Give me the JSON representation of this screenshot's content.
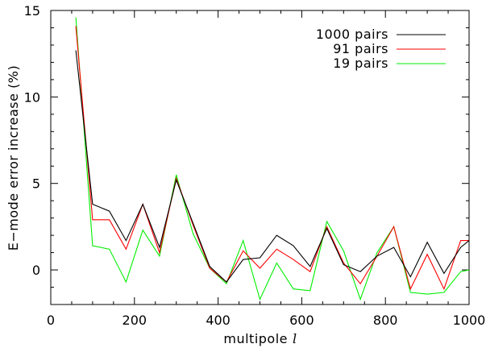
{
  "chart_data": {
    "type": "line",
    "xlabel": "multipole",
    "xlabel_symbol": "l",
    "ylabel": "E−mode error increase (%)",
    "xlim": [
      0,
      1000
    ],
    "ylim": [
      -2,
      15
    ],
    "x_ticks": [
      0,
      200,
      400,
      600,
      800,
      1000
    ],
    "y_ticks": [
      0,
      5,
      10,
      15
    ],
    "x_tick_labels": [
      "0",
      "200",
      "400",
      "600",
      "800",
      "1000"
    ],
    "y_tick_labels": [
      "0",
      "5",
      "10",
      "15"
    ],
    "grid": false,
    "legend_position": "top-right",
    "x": [
      60,
      100,
      140,
      180,
      220,
      260,
      300,
      340,
      380,
      420,
      460,
      500,
      540,
      580,
      620,
      660,
      700,
      740,
      780,
      820,
      860,
      900,
      940,
      980,
      1000
    ],
    "series": [
      {
        "name": "1000 pairs",
        "color": "#000000",
        "values": [
          12.7,
          3.8,
          3.4,
          1.7,
          3.8,
          1.3,
          5.2,
          2.7,
          0.2,
          -0.7,
          0.6,
          0.7,
          2.0,
          1.4,
          0.2,
          2.4,
          0.3,
          -0.1,
          0.8,
          1.3,
          -0.4,
          1.6,
          -0.2,
          1.3,
          1.7
        ]
      },
      {
        "name": "91 pairs",
        "color": "#ff0000",
        "values": [
          14.1,
          2.9,
          2.9,
          1.2,
          3.8,
          1.0,
          5.3,
          2.6,
          0.1,
          -0.7,
          1.1,
          0.1,
          1.2,
          0.6,
          -0.1,
          2.5,
          0.4,
          -0.8,
          0.8,
          2.5,
          -1.1,
          0.9,
          -1.1,
          1.7,
          1.7
        ]
      },
      {
        "name": "19 pairs",
        "color": "#00ee00",
        "values": [
          14.6,
          1.4,
          1.2,
          -0.7,
          2.3,
          0.8,
          5.5,
          2.1,
          0.1,
          -0.8,
          1.7,
          -1.7,
          0.4,
          -1.1,
          -1.2,
          2.8,
          1.1,
          -1.7,
          1.0,
          2.5,
          -1.3,
          -1.4,
          -1.3,
          -0.1,
          0.0
        ]
      }
    ]
  }
}
